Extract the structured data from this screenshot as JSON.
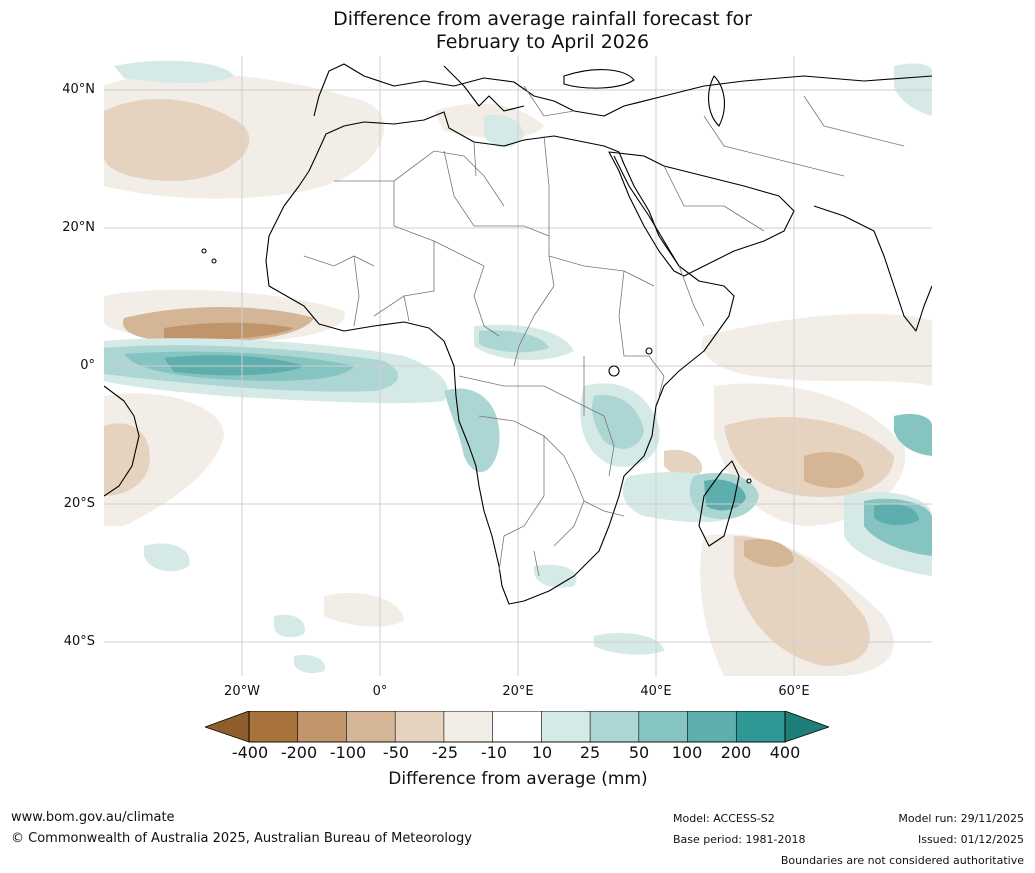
{
  "title": {
    "line1": "Difference from average rainfall forecast for",
    "line2": "February to April 2026"
  },
  "map": {
    "region": "Africa",
    "lat_labels": [
      "40°N",
      "20°N",
      "0°",
      "20°S",
      "40°S"
    ],
    "lon_labels": [
      "20°W",
      "0°",
      "20°E",
      "40°E",
      "60°E"
    ]
  },
  "colorbar": {
    "title": "Difference from average (mm)",
    "ticks": [
      "-400",
      "-200",
      "-100",
      "-50",
      "-25",
      "-10",
      "10",
      "25",
      "50",
      "100",
      "200",
      "400"
    ],
    "colors": [
      "#a8733a",
      "#c0956c",
      "#d4b595",
      "#e5d3c0",
      "#f2ede6",
      "#ffffff",
      "#d5e9e7",
      "#abd6d3",
      "#86c4c1",
      "#5eaead",
      "#2e9895",
      "#1f7d7a"
    ],
    "low_extend_color": "#8e5e2c"
  },
  "footer": {
    "url": "www.bom.gov.au/climate",
    "copyright": "© Commonwealth of Australia 2025, Australian Bureau of Meteorology",
    "model": "Model: ACCESS-S2",
    "base_period": "Base period: 1981-2018",
    "model_run": "Model run: 29/11/2025",
    "issued": "Issued: 01/12/2025",
    "disclaimer": "Boundaries are not considered authoritative"
  }
}
